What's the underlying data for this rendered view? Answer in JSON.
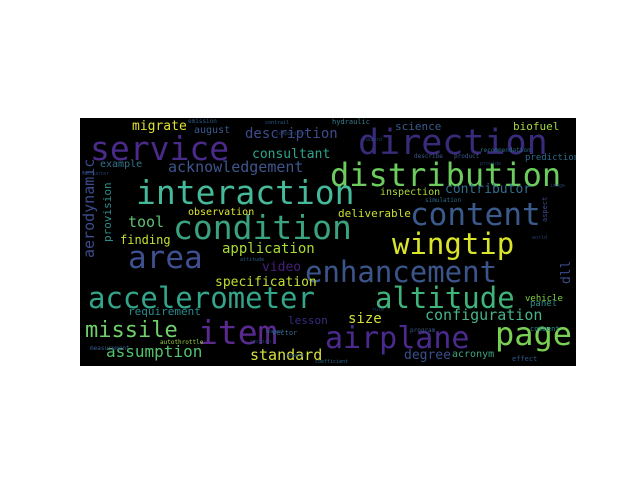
{
  "word_cloud": {
    "background": "#000000",
    "words": [
      {
        "text": "direction",
        "color": "#3a2a7a"
      },
      {
        "text": "service",
        "color": "#4a2a8a"
      },
      {
        "text": "distribution",
        "color": "#6ccc5e"
      },
      {
        "text": "interaction",
        "color": "#46b99a"
      },
      {
        "text": "content",
        "color": "#3a5a8c"
      },
      {
        "text": "condition",
        "color": "#3aa27e"
      },
      {
        "text": "wingtip",
        "color": "#d9e52a"
      },
      {
        "text": "area",
        "color": "#3f5090"
      },
      {
        "text": "enhancement",
        "color": "#3b558b"
      },
      {
        "text": "accelerometer",
        "color": "#33a58a"
      },
      {
        "text": "altitude",
        "color": "#3fb47a"
      },
      {
        "text": "item",
        "color": "#5a2a90"
      },
      {
        "text": "airplane",
        "color": "#4a2a8c"
      },
      {
        "text": "page",
        "color": "#79d052"
      },
      {
        "text": "missile",
        "color": "#6fd06a"
      },
      {
        "text": "assumption",
        "color": "#54c26c"
      },
      {
        "text": "configuration",
        "color": "#46b488"
      },
      {
        "text": "standard",
        "color": "#d6e040"
      },
      {
        "text": "application",
        "color": "#a8db34"
      },
      {
        "text": "specification",
        "color": "#c4df30"
      },
      {
        "text": "aerodynamic",
        "color": "#3c4c8c"
      },
      {
        "text": "description",
        "color": "#3e4a8a"
      },
      {
        "text": "acknowledgement",
        "color": "#3e568d"
      },
      {
        "text": "consultant",
        "color": "#2ea58c"
      },
      {
        "text": "contributor",
        "color": "#316e8e"
      },
      {
        "text": "migrate",
        "color": "#e0e030"
      },
      {
        "text": "science",
        "color": "#3a5a8c"
      },
      {
        "text": "biofuel",
        "color": "#a4d640"
      },
      {
        "text": "tool",
        "color": "#5fc070"
      },
      {
        "text": "finding",
        "color": "#c7df30"
      },
      {
        "text": "deliverable",
        "color": "#c8e030"
      },
      {
        "text": "inspection",
        "color": "#a9d83a"
      },
      {
        "text": "observation",
        "color": "#e0e630"
      },
      {
        "text": "video",
        "color": "#44207a"
      },
      {
        "text": "size",
        "color": "#d4e038"
      },
      {
        "text": "lesson",
        "color": "#3a2a80"
      },
      {
        "text": "degree",
        "color": "#3a4f8d"
      },
      {
        "text": "requirement",
        "color": "#2a8a8c"
      },
      {
        "text": "provision",
        "color": "#2a8e8a"
      },
      {
        "text": "example",
        "color": "#33748e"
      },
      {
        "text": "august",
        "color": "#3a5a8c"
      },
      {
        "text": "acronym",
        "color": "#3ea582"
      },
      {
        "text": "dll",
        "color": "#3a4a8a"
      },
      {
        "text": "panel",
        "color": "#28908a"
      },
      {
        "text": "vehicle",
        "color": "#80d040"
      },
      {
        "text": "prediction",
        "color": "#2a6a8a"
      },
      {
        "text": "hydraulic",
        "color": "#3a7a8c"
      },
      {
        "text": "effect",
        "color": "#2a5a8a"
      },
      {
        "text": "comment",
        "color": "#2a8a8c"
      },
      {
        "text": "autothrottle",
        "color": "#a0d048"
      },
      {
        "text": "aspect",
        "color": "#3a4a8a"
      },
      {
        "text": "vector",
        "color": "#3a6a8c"
      },
      {
        "text": "program",
        "color": "#3a5a8c"
      },
      {
        "text": "simulation",
        "color": "#2a6a8a"
      },
      {
        "text": "recommendation",
        "color": "#2a6a8a"
      },
      {
        "text": "product",
        "color": "#3a5a8c"
      },
      {
        "text": "describe",
        "color": "#3a5a8c"
      },
      {
        "text": "emission",
        "color": "#2a5a8a"
      },
      {
        "text": "moment",
        "color": "#2a5a8a"
      },
      {
        "text": "report",
        "color": "#2a5a8a"
      },
      {
        "text": "measurement",
        "color": "#3a5a8c"
      },
      {
        "text": "coefficient",
        "color": "#2a6a8a"
      },
      {
        "text": "contrail",
        "color": "#2a5a8a"
      },
      {
        "text": "attitude",
        "color": "#2a5a8a"
      },
      {
        "text": "section",
        "color": "#2a4a7a"
      },
      {
        "text": "comparison",
        "color": "#2a4a7a"
      },
      {
        "text": "encounter",
        "color": "#2a4a7a"
      },
      {
        "text": "world",
        "color": "#2a4a7a"
      },
      {
        "text": "hazard",
        "color": "#2a4a7a"
      },
      {
        "text": "image",
        "color": "#2a4a7a"
      },
      {
        "text": "provide",
        "color": "#2a4a7a"
      },
      {
        "text": "rule",
        "color": "#2a4a7a"
      }
    ]
  }
}
